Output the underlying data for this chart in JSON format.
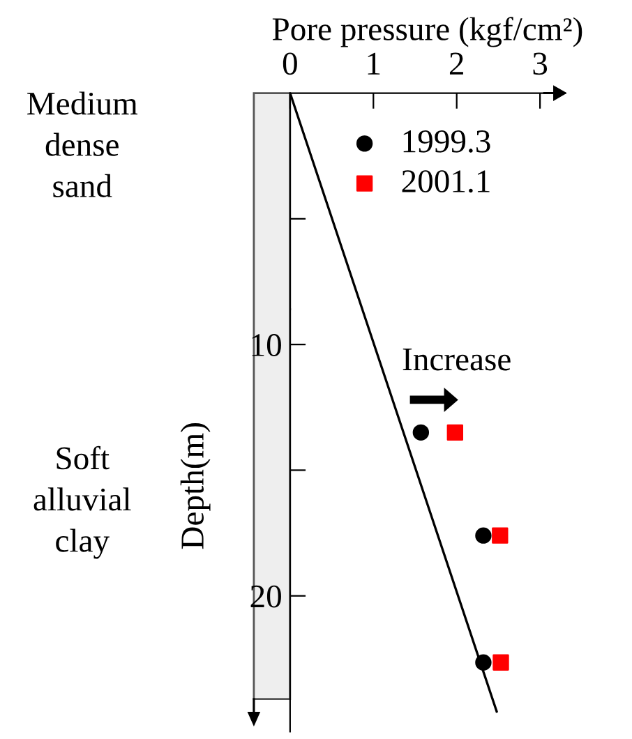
{
  "chart_data": {
    "type": "scatter",
    "xlabel": "Pore pressure (kgf/cm²)",
    "ylabel": "Depth(m)",
    "xlim": [
      0,
      3.3
    ],
    "ylim": [
      25.4,
      0
    ],
    "xticks": [
      0,
      1,
      2,
      3
    ],
    "yticks": [
      {
        "value": 5,
        "label": null
      },
      10,
      {
        "value": 15,
        "label": null
      },
      20
    ],
    "grid": false,
    "legend": "top right",
    "series": [
      {
        "type": "line",
        "color": "#000000",
        "marker": "none",
        "line_style": "solid",
        "x": [
          0,
          2.48
        ],
        "values": [
          0,
          24.6
        ]
      },
      {
        "name": "1999.3",
        "color": "#000000",
        "marker": "circle",
        "x": [
          1.57,
          2.32,
          2.32
        ],
        "values": [
          13.5,
          17.6,
          22.65
        ]
      },
      {
        "name": "2001.1",
        "color": "#ff0000",
        "marker": "square",
        "x": [
          1.98,
          2.52,
          2.53
        ],
        "values": [
          13.5,
          17.6,
          22.65
        ]
      }
    ],
    "annotations": [
      "Medium\ndense\nsand",
      "Soft\nalluvial\nclay",
      "Increase"
    ]
  }
}
